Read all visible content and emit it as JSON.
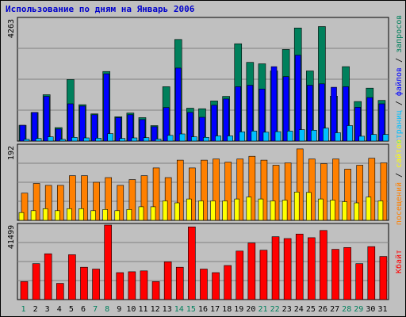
{
  "title": "Использование по дням на Январь 2006",
  "colors": {
    "background": "#c0c0c0",
    "title": "#0000cc",
    "hits": "#00805c",
    "files": "#0000ff",
    "pages": "#00c0ff",
    "visits": "#ff8000",
    "sites": "#ffff00",
    "kbytes": "#ff0000",
    "weekday": "#000000",
    "weekend": "#00805c"
  },
  "chart_data": [
    {
      "type": "bar",
      "panel": "top",
      "ymax_label": "4263",
      "ylim": [
        0,
        4263
      ],
      "legend": {
        "hits": "запросов",
        "files": "файлов",
        "pages": "страниц"
      },
      "categories": [
        "1",
        "2",
        "3",
        "4",
        "5",
        "6",
        "7",
        "8",
        "9",
        "10",
        "11",
        "12",
        "13",
        "14",
        "15",
        "16",
        "17",
        "18",
        "19",
        "20",
        "21",
        "22",
        "23",
        "24",
        "25",
        "26",
        "27",
        "28",
        "29",
        "30",
        "31"
      ],
      "series": [
        {
          "name": "запросов",
          "values": [
            550,
            1000,
            1620,
            470,
            2150,
            1270,
            950,
            2430,
            850,
            980,
            820,
            540,
            1900,
            3550,
            1150,
            1130,
            1400,
            1560,
            3400,
            2750,
            2700,
            2450,
            3200,
            3950,
            2450,
            4000,
            1570,
            2600,
            1380,
            1850,
            1420
          ]
        },
        {
          "name": "файлов",
          "values": [
            550,
            1000,
            1560,
            420,
            1300,
            1220,
            920,
            2350,
            820,
            920,
            750,
            500,
            1170,
            2550,
            1000,
            830,
            1250,
            1470,
            1900,
            1950,
            1820,
            2600,
            2250,
            3000,
            1950,
            2000,
            1880,
            1900,
            1180,
            1520,
            1300
          ]
        },
        {
          "name": "страниц",
          "values": [
            60,
            90,
            150,
            60,
            130,
            110,
            100,
            260,
            90,
            110,
            120,
            70,
            200,
            250,
            150,
            130,
            180,
            180,
            320,
            350,
            310,
            330,
            350,
            400,
            380,
            450,
            290,
            540,
            170,
            230,
            230
          ]
        }
      ]
    },
    {
      "type": "bar",
      "panel": "middle",
      "ymax_label": "192",
      "ylim": [
        0,
        192
      ],
      "legend": {
        "sites": "сайтов",
        "visits": "посещений"
      },
      "categories": [
        "1",
        "2",
        "3",
        "4",
        "5",
        "6",
        "7",
        "8",
        "9",
        "10",
        "11",
        "12",
        "13",
        "14",
        "15",
        "16",
        "17",
        "18",
        "19",
        "20",
        "21",
        "22",
        "23",
        "24",
        "25",
        "26",
        "27",
        "28",
        "29",
        "30",
        "31"
      ],
      "series": [
        {
          "name": "посещений",
          "values": [
            70,
            95,
            90,
            90,
            115,
            115,
            98,
            110,
            90,
            105,
            115,
            135,
            110,
            155,
            135,
            155,
            158,
            150,
            158,
            165,
            155,
            142,
            148,
            184,
            158,
            146,
            158,
            132,
            142,
            160,
            148
          ]
        },
        {
          "name": "сайтов",
          "values": [
            20,
            25,
            30,
            25,
            30,
            30,
            25,
            28,
            25,
            28,
            35,
            35,
            50,
            45,
            55,
            50,
            50,
            50,
            55,
            60,
            55,
            50,
            52,
            73,
            72,
            55,
            52,
            48,
            45,
            60,
            50
          ]
        }
      ]
    },
    {
      "type": "bar",
      "panel": "bottom",
      "ymax_label": "41499",
      "ylim": [
        0,
        41499
      ],
      "legend": {
        "kbytes": "Кбайт"
      },
      "categories": [
        "1",
        "2",
        "3",
        "4",
        "5",
        "6",
        "7",
        "8",
        "9",
        "10",
        "11",
        "12",
        "13",
        "14",
        "15",
        "16",
        "17",
        "18",
        "19",
        "20",
        "21",
        "22",
        "23",
        "24",
        "25",
        "26",
        "27",
        "28",
        "29",
        "30",
        "31"
      ],
      "series": [
        {
          "name": "Кбайт",
          "values": [
            10000,
            20000,
            25500,
            9000,
            25000,
            18000,
            17000,
            41499,
            15000,
            15500,
            16000,
            10000,
            21000,
            18000,
            40500,
            17000,
            15000,
            19000,
            27000,
            31500,
            27500,
            35000,
            34000,
            36500,
            34500,
            38500,
            28000,
            29000,
            20000,
            29500,
            24000
          ]
        }
      ]
    }
  ],
  "x_labels": [
    {
      "label": "1",
      "weekend": true
    },
    {
      "label": "2",
      "weekend": false
    },
    {
      "label": "3",
      "weekend": false
    },
    {
      "label": "4",
      "weekend": false
    },
    {
      "label": "5",
      "weekend": false
    },
    {
      "label": "6",
      "weekend": false
    },
    {
      "label": "7",
      "weekend": true
    },
    {
      "label": "8",
      "weekend": true
    },
    {
      "label": "9",
      "weekend": false
    },
    {
      "label": "10",
      "weekend": false
    },
    {
      "label": "11",
      "weekend": false
    },
    {
      "label": "12",
      "weekend": false
    },
    {
      "label": "13",
      "weekend": false
    },
    {
      "label": "14",
      "weekend": true
    },
    {
      "label": "15",
      "weekend": true
    },
    {
      "label": "16",
      "weekend": false
    },
    {
      "label": "17",
      "weekend": false
    },
    {
      "label": "18",
      "weekend": false
    },
    {
      "label": "19",
      "weekend": false
    },
    {
      "label": "20",
      "weekend": false
    },
    {
      "label": "21",
      "weekend": true
    },
    {
      "label": "22",
      "weekend": true
    },
    {
      "label": "23",
      "weekend": false
    },
    {
      "label": "24",
      "weekend": false
    },
    {
      "label": "25",
      "weekend": false
    },
    {
      "label": "26",
      "weekend": false
    },
    {
      "label": "27",
      "weekend": false
    },
    {
      "label": "28",
      "weekend": true
    },
    {
      "label": "29",
      "weekend": true
    },
    {
      "label": "30",
      "weekend": false
    },
    {
      "label": "31",
      "weekend": false
    }
  ],
  "separator": " / "
}
